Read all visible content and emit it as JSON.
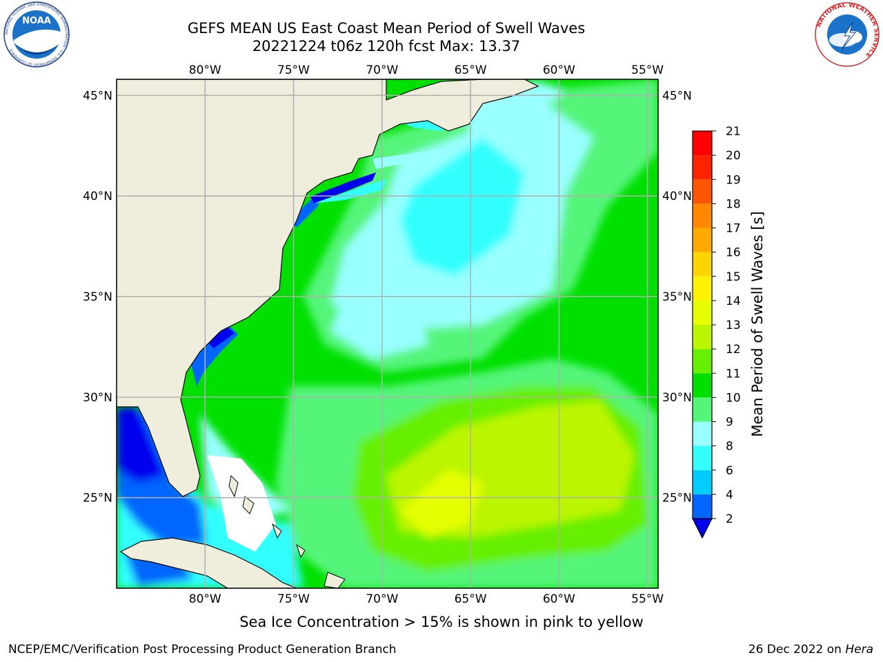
{
  "header": {
    "title_line1": "GEFS MEAN US East Coast Mean Period of Swell Waves",
    "title_line2": "20221224 t06z 120h fcst   Max: 13.37"
  },
  "logos": {
    "left": {
      "name": "noaa-logo",
      "text": "NOAA",
      "ring_text": "NATIONAL OCEANIC AND ATMOSPHERIC ADMINISTRATION · U.S. DEPARTMENT OF COMMERCE"
    },
    "right": {
      "name": "nws-logo",
      "ring_text": "NATIONAL WEATHER SERVICE"
    }
  },
  "map": {
    "lon_labels": [
      "80°W",
      "75°W",
      "70°W",
      "65°W",
      "60°W",
      "55°W"
    ],
    "lat_labels": [
      "45°N",
      "40°N",
      "35°N",
      "30°N",
      "25°N"
    ],
    "lon_values": [
      -80,
      -75,
      -70,
      -65,
      -60,
      -55
    ],
    "lat_values": [
      45,
      40,
      35,
      30,
      25
    ],
    "lon_range": [
      -85,
      -54.4
    ],
    "lat_range": [
      20.5,
      45.8
    ],
    "land_color": "#efeedd",
    "grid_color": "#b0b0b0"
  },
  "colorbar": {
    "label": "Mean Period of Swell Waves [s]",
    "tick_labels": [
      "2",
      "4",
      "6",
      "8",
      "9",
      "10",
      "11",
      "12",
      "13",
      "14",
      "15",
      "16",
      "17",
      "18",
      "19",
      "20",
      "21"
    ],
    "colors": [
      "#0066ff",
      "#00ccff",
      "#33ffff",
      "#99ffff",
      "#55f57a",
      "#00e000",
      "#66f000",
      "#bbf500",
      "#e6ff00",
      "#fff200",
      "#ffd500",
      "#ffaa00",
      "#ff8800",
      "#ff5500",
      "#ff2200",
      "#ff0000"
    ],
    "extend_color": "#0000ee"
  },
  "footer": {
    "ice_note": "Sea Ice Concentration > 15% is shown in pink to yellow",
    "left": "NCEP/EMC/Verification Post Processing Product Generation Branch",
    "right_date": "26 Dec 2022 on",
    "right_host": "Hera"
  }
}
